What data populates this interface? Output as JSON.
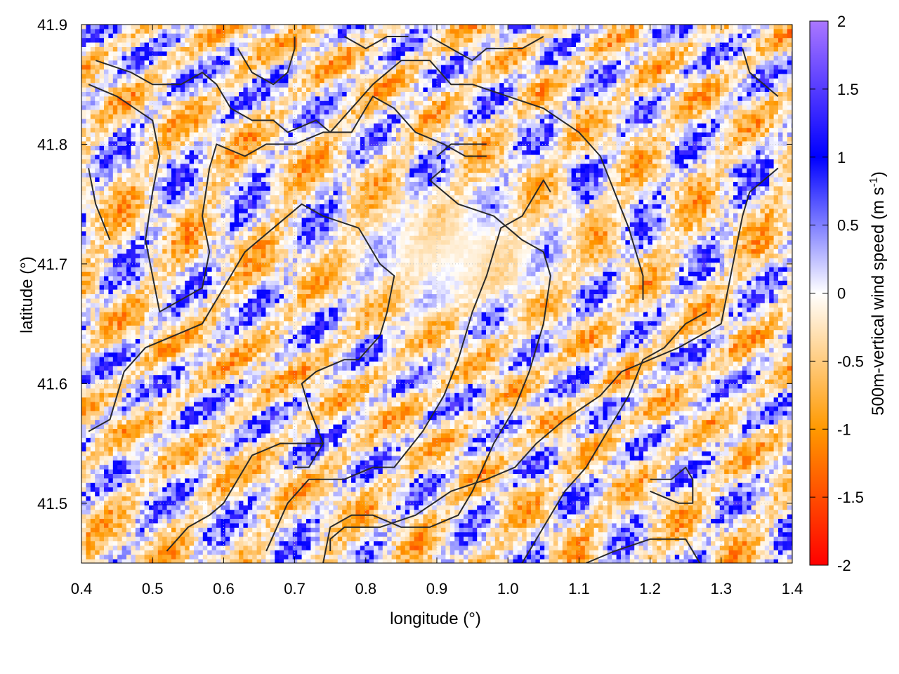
{
  "chart_data": {
    "type": "heatmap",
    "title": "",
    "xlabel": "longitude (°)",
    "ylabel": "latitude (°)",
    "xlim": [
      0.4,
      1.4
    ],
    "ylim": [
      41.45,
      41.9
    ],
    "xticks": [
      0.4,
      0.5,
      0.6,
      0.7,
      0.8,
      0.9,
      1.0,
      1.1,
      1.2,
      1.3,
      1.4
    ],
    "xtick_labels": [
      "0.4",
      "0.5",
      "0.6",
      "0.7",
      "0.8",
      "0.9",
      "1.0",
      "1.1",
      "1.2",
      "1.3",
      "1.4"
    ],
    "yticks": [
      41.5,
      41.6,
      41.7,
      41.8,
      41.9
    ],
    "ytick_labels": [
      "41.5",
      "41.6",
      "41.7",
      "41.8",
      "41.9"
    ],
    "grid": true,
    "colorbar": {
      "label_prefix": "500m-vertical wind speed (m s",
      "label_sup": "-1",
      "label_suffix": ")",
      "range": [
        -2,
        2
      ],
      "ticks": [
        2,
        1.5,
        1,
        0.5,
        0,
        -0.5,
        -1,
        -1.5,
        -2
      ],
      "tick_labels": [
        "2",
        "1.5",
        "1",
        "0.5",
        "0",
        "-0.5",
        "-1",
        "-1.5",
        "-2"
      ],
      "stops": [
        {
          "value": -2,
          "color": "#ff0000"
        },
        {
          "value": -1,
          "color": "#ff9900"
        },
        {
          "value": 0,
          "color": "#ffffff"
        },
        {
          "value": 1,
          "color": "#0000ff"
        },
        {
          "value": 2,
          "color": "#aa77ff"
        }
      ]
    },
    "contour_color": "#2a2a2a",
    "contours": [
      [
        [
          0.42,
          41.87
        ],
        [
          0.47,
          41.86
        ],
        [
          0.5,
          41.85
        ],
        [
          0.54,
          41.85
        ],
        [
          0.57,
          41.86
        ],
        [
          0.59,
          41.85
        ],
        [
          0.61,
          41.83
        ],
        [
          0.64,
          41.82
        ],
        [
          0.67,
          41.82
        ],
        [
          0.69,
          41.81
        ],
        [
          0.73,
          41.82
        ],
        [
          0.75,
          41.81
        ],
        [
          0.78,
          41.83
        ],
        [
          0.81,
          41.85
        ],
        [
          0.85,
          41.87
        ],
        [
          0.89,
          41.87
        ],
        [
          0.92,
          41.85
        ],
        [
          0.95,
          41.85
        ],
        [
          1.0,
          41.84
        ],
        [
          1.05,
          41.83
        ],
        [
          1.1,
          41.81
        ],
        [
          1.13,
          41.79
        ],
        [
          1.15,
          41.76
        ],
        [
          1.17,
          41.73
        ],
        [
          1.19,
          41.69
        ],
        [
          1.19,
          41.67
        ]
      ],
      [
        [
          0.41,
          41.85
        ],
        [
          0.45,
          41.84
        ],
        [
          0.5,
          41.82
        ],
        [
          0.51,
          41.79
        ],
        [
          0.5,
          41.76
        ],
        [
          0.49,
          41.72
        ],
        [
          0.5,
          41.69
        ],
        [
          0.51,
          41.66
        ],
        [
          0.54,
          41.67
        ],
        [
          0.57,
          41.68
        ],
        [
          0.58,
          41.71
        ],
        [
          0.57,
          41.74
        ],
        [
          0.58,
          41.78
        ],
        [
          0.59,
          41.8
        ],
        [
          0.63,
          41.79
        ],
        [
          0.66,
          41.8
        ],
        [
          0.7,
          41.8
        ],
        [
          0.74,
          41.81
        ],
        [
          0.78,
          41.81
        ],
        [
          0.81,
          41.84
        ],
        [
          0.84,
          41.83
        ],
        [
          0.87,
          41.81
        ],
        [
          0.91,
          41.8
        ],
        [
          0.94,
          41.79
        ],
        [
          0.97,
          41.79
        ]
      ],
      [
        [
          0.91,
          41.78
        ],
        [
          0.89,
          41.77
        ],
        [
          0.93,
          41.75
        ],
        [
          0.98,
          41.74
        ],
        [
          1.02,
          41.72
        ],
        [
          1.05,
          41.71
        ],
        [
          1.06,
          41.69
        ],
        [
          1.05,
          41.65
        ],
        [
          1.03,
          41.61
        ],
        [
          1.01,
          41.58
        ],
        [
          0.98,
          41.55
        ],
        [
          0.95,
          41.51
        ],
        [
          0.93,
          41.49
        ],
        [
          0.89,
          41.48
        ],
        [
          0.85,
          41.48
        ],
        [
          0.81,
          41.49
        ],
        [
          0.78,
          41.49
        ],
        [
          0.75,
          41.48
        ],
        [
          0.74,
          41.45
        ]
      ],
      [
        [
          0.9,
          41.79
        ],
        [
          0.92,
          41.8
        ],
        [
          0.97,
          41.8
        ]
      ],
      [
        [
          0.41,
          41.56
        ],
        [
          0.44,
          41.57
        ],
        [
          0.46,
          41.61
        ],
        [
          0.49,
          41.63
        ],
        [
          0.53,
          41.64
        ],
        [
          0.57,
          41.65
        ],
        [
          0.59,
          41.67
        ],
        [
          0.61,
          41.69
        ],
        [
          0.63,
          41.71
        ],
        [
          0.67,
          41.73
        ],
        [
          0.71,
          41.75
        ],
        [
          0.74,
          41.74
        ],
        [
          0.79,
          41.73
        ],
        [
          0.82,
          41.7
        ],
        [
          0.84,
          41.69
        ],
        [
          0.83,
          41.66
        ],
        [
          0.82,
          41.64
        ],
        [
          0.79,
          41.62
        ],
        [
          0.77,
          41.62
        ],
        [
          0.73,
          41.61
        ],
        [
          0.71,
          41.6
        ],
        [
          0.72,
          41.58
        ],
        [
          0.74,
          41.55
        ]
      ],
      [
        [
          0.52,
          41.46
        ],
        [
          0.55,
          41.48
        ],
        [
          0.58,
          41.49
        ],
        [
          0.6,
          41.5
        ],
        [
          0.62,
          41.52
        ],
        [
          0.64,
          41.54
        ],
        [
          0.68,
          41.55
        ],
        [
          0.71,
          41.55
        ],
        [
          0.74,
          41.55
        ],
        [
          0.72,
          41.53
        ],
        [
          0.7,
          41.53
        ]
      ],
      [
        [
          0.66,
          41.46
        ],
        [
          0.69,
          41.5
        ],
        [
          0.72,
          41.52
        ],
        [
          0.74,
          41.52
        ],
        [
          0.77,
          41.52
        ],
        [
          0.81,
          41.53
        ],
        [
          0.84,
          41.53
        ],
        [
          0.88,
          41.56
        ],
        [
          0.91,
          41.59
        ],
        [
          0.93,
          41.62
        ],
        [
          0.95,
          41.66
        ],
        [
          0.97,
          41.69
        ],
        [
          0.99,
          41.73
        ],
        [
          1.02,
          41.74
        ],
        [
          1.05,
          41.77
        ],
        [
          1.06,
          41.76
        ]
      ],
      [
        [
          0.75,
          41.46
        ],
        [
          0.75,
          41.47
        ],
        [
          0.77,
          41.48
        ],
        [
          0.82,
          41.48
        ],
        [
          0.87,
          41.49
        ],
        [
          0.92,
          41.51
        ],
        [
          0.97,
          41.52
        ],
        [
          1.01,
          41.53
        ],
        [
          1.04,
          41.55
        ],
        [
          1.08,
          41.57
        ],
        [
          1.13,
          41.59
        ],
        [
          1.16,
          41.61
        ],
        [
          1.2,
          41.62
        ],
        [
          1.24,
          41.63
        ],
        [
          1.27,
          41.64
        ],
        [
          1.3,
          41.65
        ],
        [
          1.31,
          41.68
        ],
        [
          1.32,
          41.71
        ],
        [
          1.33,
          41.74
        ],
        [
          1.34,
          41.76
        ],
        [
          1.36,
          41.77
        ],
        [
          1.38,
          41.78
        ]
      ],
      [
        [
          1.02,
          41.45
        ],
        [
          1.05,
          41.48
        ],
        [
          1.08,
          41.51
        ],
        [
          1.11,
          41.53
        ],
        [
          1.14,
          41.56
        ],
        [
          1.17,
          41.59
        ],
        [
          1.19,
          41.62
        ],
        [
          1.22,
          41.63
        ],
        [
          1.25,
          41.65
        ],
        [
          1.28,
          41.66
        ]
      ],
      [
        [
          1.2,
          41.52
        ],
        [
          1.23,
          41.52
        ],
        [
          1.25,
          41.53
        ],
        [
          1.26,
          41.52
        ],
        [
          1.26,
          41.5
        ],
        [
          1.24,
          41.5
        ],
        [
          1.2,
          41.51
        ]
      ],
      [
        [
          1.11,
          41.45
        ],
        [
          1.15,
          41.46
        ],
        [
          1.2,
          41.47
        ],
        [
          1.25,
          41.47
        ],
        [
          1.27,
          41.45
        ]
      ],
      [
        [
          1.33,
          41.88
        ],
        [
          1.34,
          41.86
        ],
        [
          1.36,
          41.85
        ],
        [
          1.38,
          41.84
        ]
      ],
      [
        [
          0.62,
          41.88
        ],
        [
          0.64,
          41.86
        ],
        [
          0.67,
          41.85
        ],
        [
          0.69,
          41.86
        ],
        [
          0.7,
          41.88
        ],
        [
          0.7,
          41.89
        ]
      ],
      [
        [
          0.77,
          41.89
        ],
        [
          0.8,
          41.88
        ],
        [
          0.83,
          41.89
        ],
        [
          0.86,
          41.89
        ]
      ],
      [
        [
          0.89,
          41.89
        ],
        [
          0.92,
          41.88
        ],
        [
          0.95,
          41.87
        ],
        [
          0.97,
          41.88
        ],
        [
          1.0,
          41.88
        ],
        [
          1.02,
          41.88
        ],
        [
          1.05,
          41.89
        ]
      ],
      [
        [
          0.41,
          41.78
        ],
        [
          0.42,
          41.75
        ],
        [
          0.44,
          41.72
        ]
      ]
    ]
  }
}
